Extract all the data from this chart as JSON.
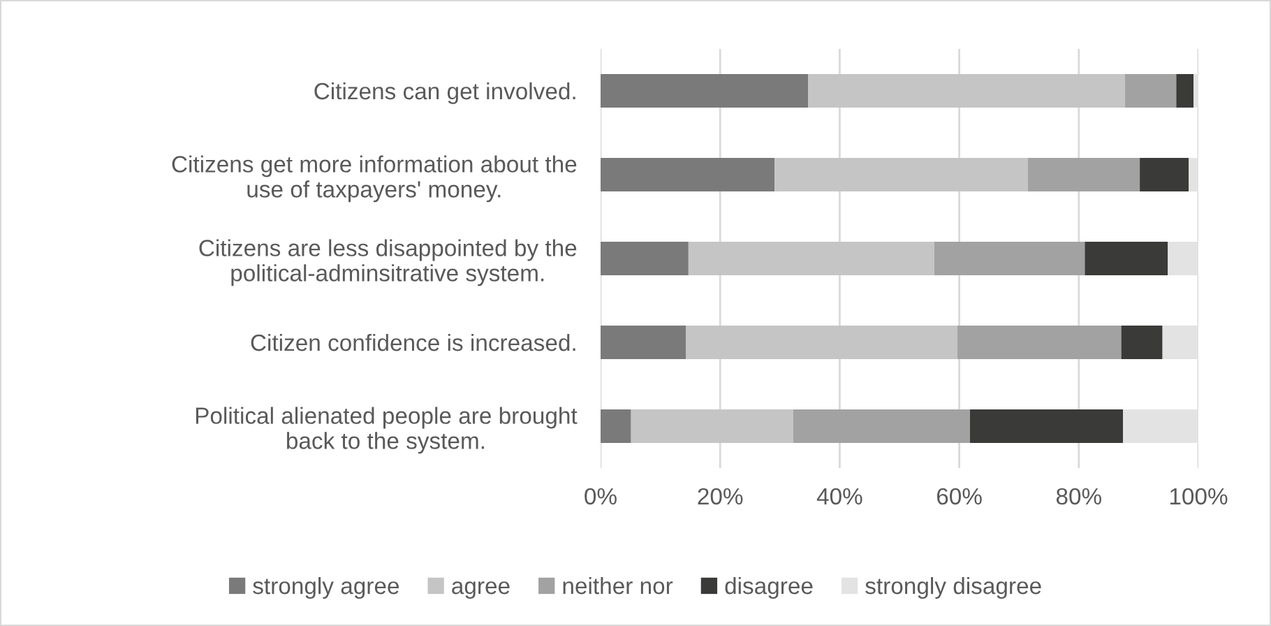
{
  "chart_data": {
    "type": "bar",
    "orientation": "horizontal",
    "stacked": true,
    "categories": [
      "Citizens can get involved.",
      "Citizens get more information about the\nuse of taxpayers' money.",
      "Citizens are less disappointed by the\npolitical-adminsitrative system.",
      "Citizen confidence is increased.",
      "Political alienated people are brought\nback to the system."
    ],
    "series": [
      {
        "name": "strongly agree",
        "color": "#7a7a7a",
        "values": [
          34.7,
          29.1,
          14.7,
          14.3,
          5.1
        ]
      },
      {
        "name": "agree",
        "color": "#c4c5c4",
        "values": [
          53.0,
          42.4,
          41.1,
          45.4,
          27.1
        ]
      },
      {
        "name": "neither nor",
        "color": "#a2a2a2",
        "values": [
          8.6,
          18.7,
          25.2,
          27.4,
          29.6
        ]
      },
      {
        "name": "disagree",
        "color": "#3a3a38",
        "values": [
          2.9,
          8.2,
          13.9,
          6.9,
          25.6
        ]
      },
      {
        "name": "strongly disagree",
        "color": "#e2e3e2",
        "values": [
          0.8,
          1.6,
          5.1,
          6.0,
          12.6
        ]
      }
    ],
    "xlim": [
      0,
      100
    ],
    "xticks": [
      {
        "value": 0,
        "label": "0%"
      },
      {
        "value": 20,
        "label": "20%"
      },
      {
        "value": 40,
        "label": "40%"
      },
      {
        "value": 60,
        "label": "60%"
      },
      {
        "value": 80,
        "label": "80%"
      },
      {
        "value": 100,
        "label": "100%"
      }
    ],
    "grid": "x",
    "legend": "bottom"
  }
}
